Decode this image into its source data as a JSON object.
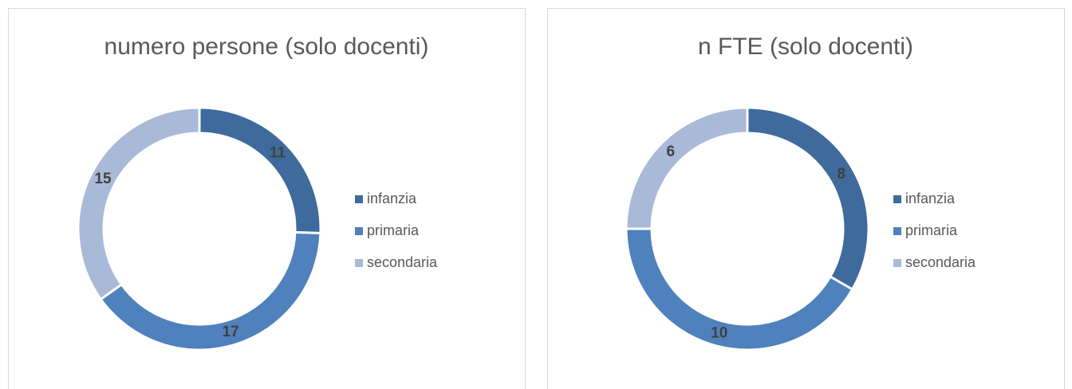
{
  "chart_data": [
    {
      "type": "donut",
      "title": "numero persone (solo docenti)",
      "categories": [
        "infanzia",
        "primaria",
        "secondaria"
      ],
      "values": [
        11,
        17,
        15
      ],
      "colors": [
        "#3f6a9c",
        "#4f81bd",
        "#a9b9d8"
      ],
      "legend": "right"
    },
    {
      "type": "donut",
      "title": "n FTE (solo docenti)",
      "categories": [
        "infanzia",
        "primaria",
        "secondaria"
      ],
      "values": [
        8,
        10,
        6
      ],
      "colors": [
        "#3f6a9c",
        "#4f81bd",
        "#a9b9d8"
      ],
      "legend": "right"
    }
  ]
}
